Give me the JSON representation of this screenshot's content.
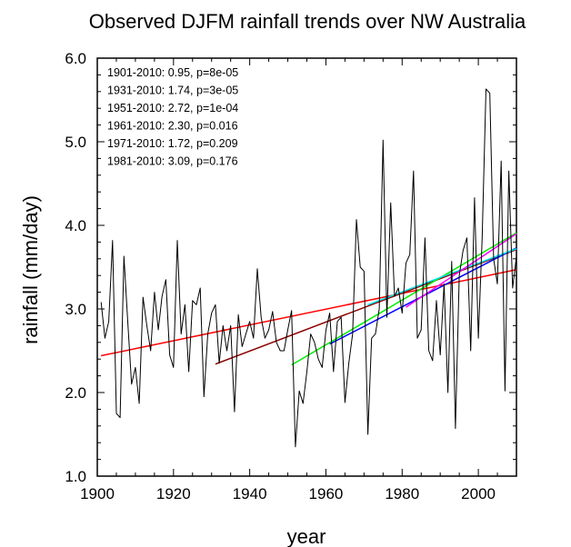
{
  "chart_data": {
    "type": "line",
    "title": "Observed DJFM rainfall trends over NW Australia",
    "xlabel": "year",
    "ylabel": "rainfall (mm/day)",
    "xlim": [
      1900,
      2010
    ],
    "ylim": [
      1.0,
      6.0
    ],
    "x_ticks": [
      "1900",
      "1920",
      "1940",
      "1960",
      "1980",
      "2000"
    ],
    "y_ticks": [
      "1.0",
      "2.0",
      "3.0",
      "4.0",
      "5.0",
      "6.0"
    ],
    "grid": false,
    "annotations": [
      "1901-2010:  0.95, p=8e-05",
      "1931-2010:  1.74, p=3e-05",
      "1951-2010:  2.72, p=1e-04",
      "1961-2010:  2.30, p=0.016",
      "1971-2010:  1.72, p=0.209",
      "1981-2010:  3.09, p=0.176"
    ],
    "rainfall": {
      "color": "#000000",
      "x": [
        1901,
        1902,
        1903,
        1904,
        1905,
        1906,
        1907,
        1908,
        1909,
        1910,
        1911,
        1912,
        1913,
        1914,
        1915,
        1916,
        1917,
        1918,
        1919,
        1920,
        1921,
        1922,
        1923,
        1924,
        1925,
        1926,
        1927,
        1928,
        1929,
        1930,
        1931,
        1932,
        1933,
        1934,
        1935,
        1936,
        1937,
        1938,
        1939,
        1940,
        1941,
        1942,
        1943,
        1944,
        1945,
        1946,
        1947,
        1948,
        1949,
        1950,
        1951,
        1952,
        1953,
        1954,
        1955,
        1956,
        1957,
        1958,
        1959,
        1960,
        1961,
        1962,
        1963,
        1964,
        1965,
        1966,
        1967,
        1968,
        1969,
        1970,
        1971,
        1972,
        1973,
        1974,
        1975,
        1976,
        1977,
        1978,
        1979,
        1980,
        1981,
        1982,
        1983,
        1984,
        1985,
        1986,
        1987,
        1988,
        1989,
        1990,
        1991,
        1992,
        1993,
        1994,
        1995,
        1996,
        1997,
        1998,
        1999,
        2000,
        2001,
        2002,
        2003,
        2004,
        2005,
        2006,
        2007,
        2008,
        2009,
        2010
      ],
      "y": [
        3.08,
        2.65,
        2.85,
        3.82,
        1.75,
        1.7,
        3.63,
        2.85,
        2.1,
        2.3,
        1.87,
        3.14,
        2.8,
        2.5,
        3.2,
        2.75,
        3.15,
        3.35,
        2.45,
        2.3,
        3.82,
        2.7,
        3.05,
        2.25,
        3.1,
        3.05,
        3.25,
        1.95,
        2.7,
        2.95,
        3.05,
        2.35,
        2.8,
        2.5,
        2.8,
        1.77,
        2.93,
        2.55,
        2.7,
        2.85,
        2.65,
        3.48,
        2.9,
        2.65,
        2.75,
        2.97,
        2.6,
        2.5,
        2.5,
        2.75,
        2.98,
        1.35,
        2.02,
        1.87,
        2.25,
        2.7,
        2.6,
        2.4,
        2.3,
        2.75,
        2.95,
        2.25,
        2.85,
        2.9,
        1.88,
        2.35,
        2.7,
        4.07,
        3.5,
        3.45,
        1.5,
        2.65,
        2.7,
        3.0,
        5.02,
        2.9,
        4.27,
        3.15,
        3.25,
        2.95,
        3.55,
        3.65,
        4.65,
        2.65,
        2.75,
        3.85,
        2.5,
        2.38,
        3.1,
        2.45,
        3.3,
        2.0,
        3.57,
        1.57,
        3.4,
        3.7,
        3.85,
        2.5,
        4.33,
        2.65,
        3.85,
        5.63,
        5.58,
        3.6,
        3.3,
        4.77,
        2.02,
        4.65,
        3.25,
        3.63
      ]
    },
    "trends": [
      {
        "period": "1901-2010",
        "color": "#ff0000",
        "x": [
          1901,
          2010
        ],
        "y": [
          2.44,
          3.47
        ]
      },
      {
        "period": "1931-2010",
        "color": "#8b0000",
        "x": [
          1931,
          2010
        ],
        "y": [
          2.34,
          3.71
        ]
      },
      {
        "period": "1951-2010",
        "color": "#00ee00",
        "x": [
          1951,
          2010
        ],
        "y": [
          2.33,
          3.91
        ]
      },
      {
        "period": "1961-2010",
        "color": "#0000ff",
        "x": [
          1961,
          2010
        ],
        "y": [
          2.58,
          3.73
        ]
      },
      {
        "period": "1971-2010",
        "color": "#00e5ee",
        "x": [
          1971,
          2010
        ],
        "y": [
          3.05,
          3.72
        ]
      },
      {
        "period": "1981-2010",
        "color": "#ff00ff",
        "x": [
          1981,
          2010
        ],
        "y": [
          3.02,
          3.9
        ]
      }
    ]
  }
}
